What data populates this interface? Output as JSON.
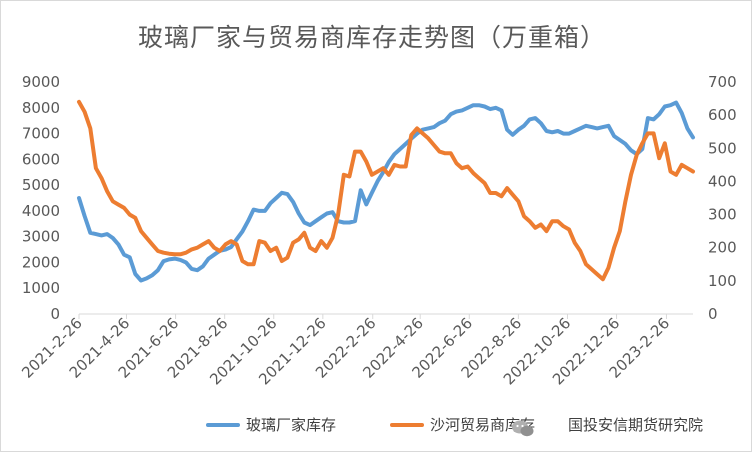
{
  "chart_data": {
    "type": "line",
    "title": "玻璃厂家与贸易商库存走势图（万重箱）",
    "xlabel": "",
    "ylabel": "",
    "x_tick_labels": [
      "2021-2-26",
      "2021-4-26",
      "2021-6-26",
      "2021-8-26",
      "2021-10-26",
      "2021-12-26",
      "2022-2-26",
      "2022-4-26",
      "2022-6-26",
      "2022-8-26",
      "2022-10-26",
      "2022-12-26",
      "2023-2-26"
    ],
    "x_range": [
      "2021-02-26",
      "2023-03-31"
    ],
    "y_left": {
      "min": 0,
      "max": 9000,
      "ticks": [
        0,
        1000,
        2000,
        3000,
        4000,
        5000,
        6000,
        7000,
        8000,
        9000
      ]
    },
    "y_right": {
      "min": 0,
      "max": 700,
      "ticks": [
        0,
        100,
        200,
        300,
        400,
        500,
        600,
        700
      ]
    },
    "grid": false,
    "legend_position": "bottom",
    "series": [
      {
        "name": "玻璃厂家库存",
        "axis": "left",
        "color": "#5B9BD5",
        "points": [
          [
            "2021-02-26",
            4500
          ],
          [
            "2021-03-05",
            3800
          ],
          [
            "2021-03-12",
            3150
          ],
          [
            "2021-03-19",
            3100
          ],
          [
            "2021-03-26",
            3050
          ],
          [
            "2021-04-02",
            3100
          ],
          [
            "2021-04-09",
            2950
          ],
          [
            "2021-04-16",
            2700
          ],
          [
            "2021-04-23",
            2300
          ],
          [
            "2021-04-30",
            2200
          ],
          [
            "2021-05-07",
            1550
          ],
          [
            "2021-05-14",
            1300
          ],
          [
            "2021-05-21",
            1380
          ],
          [
            "2021-05-28",
            1500
          ],
          [
            "2021-06-04",
            1700
          ],
          [
            "2021-06-11",
            2050
          ],
          [
            "2021-06-18",
            2120
          ],
          [
            "2021-06-25",
            2150
          ],
          [
            "2021-07-02",
            2100
          ],
          [
            "2021-07-09",
            2000
          ],
          [
            "2021-07-16",
            1750
          ],
          [
            "2021-07-23",
            1700
          ],
          [
            "2021-07-30",
            1850
          ],
          [
            "2021-08-06",
            2150
          ],
          [
            "2021-08-13",
            2300
          ],
          [
            "2021-08-20",
            2450
          ],
          [
            "2021-08-27",
            2500
          ],
          [
            "2021-09-03",
            2600
          ],
          [
            "2021-09-10",
            2900
          ],
          [
            "2021-09-17",
            3200
          ],
          [
            "2021-09-24",
            3600
          ],
          [
            "2021-10-01",
            4050
          ],
          [
            "2021-10-08",
            4000
          ],
          [
            "2021-10-15",
            4000
          ],
          [
            "2021-10-22",
            4300
          ],
          [
            "2021-10-29",
            4500
          ],
          [
            "2021-11-05",
            4700
          ],
          [
            "2021-11-12",
            4650
          ],
          [
            "2021-11-19",
            4350
          ],
          [
            "2021-11-26",
            3900
          ],
          [
            "2021-12-03",
            3550
          ],
          [
            "2021-12-10",
            3450
          ],
          [
            "2021-12-17",
            3600
          ],
          [
            "2021-12-24",
            3750
          ],
          [
            "2021-12-31",
            3900
          ],
          [
            "2022-01-07",
            3950
          ],
          [
            "2022-01-14",
            3600
          ],
          [
            "2022-01-21",
            3550
          ],
          [
            "2022-01-28",
            3550
          ],
          [
            "2022-02-04",
            3600
          ],
          [
            "2022-02-11",
            4800
          ],
          [
            "2022-02-18",
            4250
          ],
          [
            "2022-02-25",
            4700
          ],
          [
            "2022-03-04",
            5150
          ],
          [
            "2022-03-11",
            5500
          ],
          [
            "2022-03-18",
            5900
          ],
          [
            "2022-03-25",
            6200
          ],
          [
            "2022-04-01",
            6400
          ],
          [
            "2022-04-08",
            6600
          ],
          [
            "2022-04-15",
            6800
          ],
          [
            "2022-04-22",
            7000
          ],
          [
            "2022-04-29",
            7150
          ],
          [
            "2022-05-06",
            7200
          ],
          [
            "2022-05-13",
            7250
          ],
          [
            "2022-05-20",
            7400
          ],
          [
            "2022-05-27",
            7500
          ],
          [
            "2022-06-03",
            7750
          ],
          [
            "2022-06-10",
            7850
          ],
          [
            "2022-06-17",
            7900
          ],
          [
            "2022-06-24",
            8000
          ],
          [
            "2022-07-01",
            8100
          ],
          [
            "2022-07-08",
            8100
          ],
          [
            "2022-07-15",
            8050
          ],
          [
            "2022-07-22",
            7950
          ],
          [
            "2022-07-29",
            8000
          ],
          [
            "2022-08-05",
            7900
          ],
          [
            "2022-08-12",
            7150
          ],
          [
            "2022-08-19",
            6950
          ],
          [
            "2022-08-26",
            7150
          ],
          [
            "2022-09-02",
            7300
          ],
          [
            "2022-09-09",
            7550
          ],
          [
            "2022-09-16",
            7600
          ],
          [
            "2022-09-23",
            7400
          ],
          [
            "2022-09-30",
            7100
          ],
          [
            "2022-10-07",
            7050
          ],
          [
            "2022-10-14",
            7100
          ],
          [
            "2022-10-21",
            7000
          ],
          [
            "2022-10-28",
            7000
          ],
          [
            "2022-11-04",
            7100
          ],
          [
            "2022-11-11",
            7200
          ],
          [
            "2022-11-18",
            7300
          ],
          [
            "2022-11-25",
            7250
          ],
          [
            "2022-12-02",
            7200
          ],
          [
            "2022-12-09",
            7250
          ],
          [
            "2022-12-16",
            7300
          ],
          [
            "2022-12-23",
            6900
          ],
          [
            "2022-12-30",
            6750
          ],
          [
            "2023-01-06",
            6600
          ],
          [
            "2023-01-13",
            6350
          ],
          [
            "2023-01-20",
            6200
          ],
          [
            "2023-01-27",
            6400
          ],
          [
            "2023-02-03",
            7600
          ],
          [
            "2023-02-10",
            7550
          ],
          [
            "2023-02-17",
            7750
          ],
          [
            "2023-02-24",
            8050
          ],
          [
            "2023-03-03",
            8100
          ],
          [
            "2023-03-10",
            8200
          ],
          [
            "2023-03-17",
            7800
          ],
          [
            "2023-03-24",
            7200
          ],
          [
            "2023-03-31",
            6850
          ]
        ]
      },
      {
        "name": "沙河贸易商库存",
        "axis": "right",
        "color": "#ED7D31",
        "points": [
          [
            "2021-02-26",
            640
          ],
          [
            "2021-03-05",
            610
          ],
          [
            "2021-03-12",
            560
          ],
          [
            "2021-03-19",
            440
          ],
          [
            "2021-03-26",
            410
          ],
          [
            "2021-04-02",
            370
          ],
          [
            "2021-04-09",
            340
          ],
          [
            "2021-04-16",
            330
          ],
          [
            "2021-04-23",
            320
          ],
          [
            "2021-04-30",
            300
          ],
          [
            "2021-05-07",
            290
          ],
          [
            "2021-05-14",
            250
          ],
          [
            "2021-05-21",
            230
          ],
          [
            "2021-05-28",
            210
          ],
          [
            "2021-06-04",
            190
          ],
          [
            "2021-06-11",
            185
          ],
          [
            "2021-06-18",
            182
          ],
          [
            "2021-06-25",
            180
          ],
          [
            "2021-07-02",
            180
          ],
          [
            "2021-07-09",
            185
          ],
          [
            "2021-07-16",
            195
          ],
          [
            "2021-07-23",
            200
          ],
          [
            "2021-07-30",
            210
          ],
          [
            "2021-08-06",
            220
          ],
          [
            "2021-08-13",
            200
          ],
          [
            "2021-08-20",
            190
          ],
          [
            "2021-08-27",
            210
          ],
          [
            "2021-09-03",
            220
          ],
          [
            "2021-09-10",
            210
          ],
          [
            "2021-09-17",
            160
          ],
          [
            "2021-09-24",
            150
          ],
          [
            "2021-10-01",
            150
          ],
          [
            "2021-10-08",
            220
          ],
          [
            "2021-10-15",
            215
          ],
          [
            "2021-10-22",
            190
          ],
          [
            "2021-10-29",
            200
          ],
          [
            "2021-11-05",
            160
          ],
          [
            "2021-11-12",
            170
          ],
          [
            "2021-11-19",
            215
          ],
          [
            "2021-11-26",
            225
          ],
          [
            "2021-12-03",
            245
          ],
          [
            "2021-12-10",
            200
          ],
          [
            "2021-12-17",
            190
          ],
          [
            "2021-12-24",
            220
          ],
          [
            "2021-12-31",
            200
          ],
          [
            "2022-01-07",
            230
          ],
          [
            "2022-01-14",
            300
          ],
          [
            "2022-01-21",
            420
          ],
          [
            "2022-01-28",
            415
          ],
          [
            "2022-02-04",
            490
          ],
          [
            "2022-02-11",
            490
          ],
          [
            "2022-02-18",
            460
          ],
          [
            "2022-02-25",
            420
          ],
          [
            "2022-03-04",
            430
          ],
          [
            "2022-03-11",
            440
          ],
          [
            "2022-03-18",
            420
          ],
          [
            "2022-03-25",
            450
          ],
          [
            "2022-04-01",
            445
          ],
          [
            "2022-04-08",
            445
          ],
          [
            "2022-04-15",
            540
          ],
          [
            "2022-04-22",
            560
          ],
          [
            "2022-04-29",
            545
          ],
          [
            "2022-05-06",
            530
          ],
          [
            "2022-05-13",
            510
          ],
          [
            "2022-05-20",
            490
          ],
          [
            "2022-05-27",
            485
          ],
          [
            "2022-06-03",
            485
          ],
          [
            "2022-06-10",
            455
          ],
          [
            "2022-06-17",
            440
          ],
          [
            "2022-06-24",
            445
          ],
          [
            "2022-07-01",
            425
          ],
          [
            "2022-07-08",
            410
          ],
          [
            "2022-07-15",
            395
          ],
          [
            "2022-07-22",
            365
          ],
          [
            "2022-07-29",
            365
          ],
          [
            "2022-08-05",
            355
          ],
          [
            "2022-08-12",
            380
          ],
          [
            "2022-08-19",
            360
          ],
          [
            "2022-08-26",
            340
          ],
          [
            "2022-09-02",
            295
          ],
          [
            "2022-09-09",
            280
          ],
          [
            "2022-09-16",
            260
          ],
          [
            "2022-09-23",
            270
          ],
          [
            "2022-09-30",
            250
          ],
          [
            "2022-10-07",
            280
          ],
          [
            "2022-10-14",
            280
          ],
          [
            "2022-10-21",
            265
          ],
          [
            "2022-10-28",
            255
          ],
          [
            "2022-11-04",
            215
          ],
          [
            "2022-11-11",
            190
          ],
          [
            "2022-11-18",
            150
          ],
          [
            "2022-11-25",
            135
          ],
          [
            "2022-12-02",
            120
          ],
          [
            "2022-12-09",
            105
          ],
          [
            "2022-12-16",
            140
          ],
          [
            "2022-12-23",
            200
          ],
          [
            "2022-12-30",
            250
          ],
          [
            "2023-01-06",
            340
          ],
          [
            "2023-01-13",
            420
          ],
          [
            "2023-01-20",
            480
          ],
          [
            "2023-01-27",
            515
          ],
          [
            "2023-02-03",
            545
          ],
          [
            "2023-02-10",
            545
          ],
          [
            "2023-02-17",
            470
          ],
          [
            "2023-02-24",
            515
          ],
          [
            "2023-03-03",
            430
          ],
          [
            "2023-03-10",
            420
          ],
          [
            "2023-03-17",
            450
          ],
          [
            "2023-03-24",
            440
          ],
          [
            "2023-03-31",
            430
          ]
        ]
      }
    ],
    "legend": [
      {
        "label": "玻璃厂家库存",
        "color": "#5B9BD5"
      },
      {
        "label": "沙河贸易商库存",
        "color": "#ED7D31"
      }
    ],
    "watermark": "国投安信期货研究院",
    "watermark_icon": "wechat-icon"
  }
}
